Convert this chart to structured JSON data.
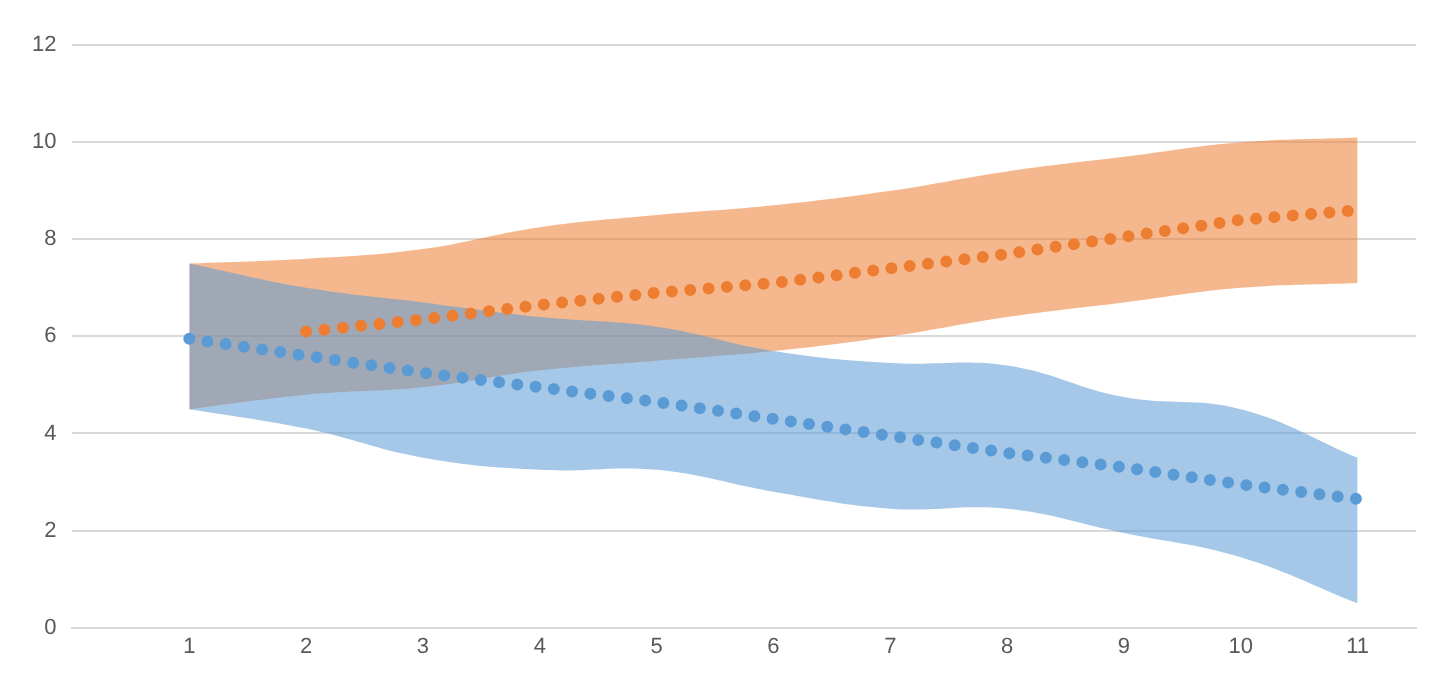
{
  "chart_data": {
    "type": "line",
    "x": [
      1,
      2,
      3,
      4,
      5,
      6,
      7,
      8,
      9,
      10,
      11
    ],
    "series": [
      {
        "color": "#5b9bd5",
        "values": [
          5.95,
          5.6,
          5.25,
          4.95,
          4.65,
          4.3,
          3.95,
          3.6,
          3.3,
          2.95,
          2.65
        ],
        "lower": [
          4.5,
          4.1,
          3.5,
          3.25,
          3.25,
          2.8,
          2.45,
          2.45,
          1.95,
          1.45,
          0.5
        ],
        "upper": [
          7.5,
          7.0,
          6.7,
          6.4,
          6.2,
          5.7,
          5.45,
          5.4,
          4.75,
          4.5,
          3.5
        ]
      },
      {
        "color": "#ed7d31",
        "values": [
          null,
          6.1,
          6.35,
          6.65,
          6.9,
          7.1,
          7.4,
          7.7,
          8.05,
          8.4,
          8.6
        ],
        "lower": [
          4.5,
          4.8,
          4.95,
          5.3,
          5.5,
          5.7,
          6.0,
          6.4,
          6.7,
          7.0,
          7.1
        ],
        "upper": [
          7.5,
          7.6,
          7.8,
          8.25,
          8.5,
          8.7,
          9.0,
          9.4,
          9.7,
          10.0,
          10.1
        ]
      }
    ],
    "xlim": [
      0,
      11.5
    ],
    "xticks": [
      1,
      2,
      3,
      4,
      5,
      6,
      7,
      8,
      9,
      10,
      11
    ],
    "ylim": [
      0,
      12
    ],
    "yticks": [
      0,
      2,
      4,
      6,
      8,
      10,
      12
    ],
    "grid": "y",
    "legend": false,
    "marker": "none",
    "line_style": "dotted"
  }
}
